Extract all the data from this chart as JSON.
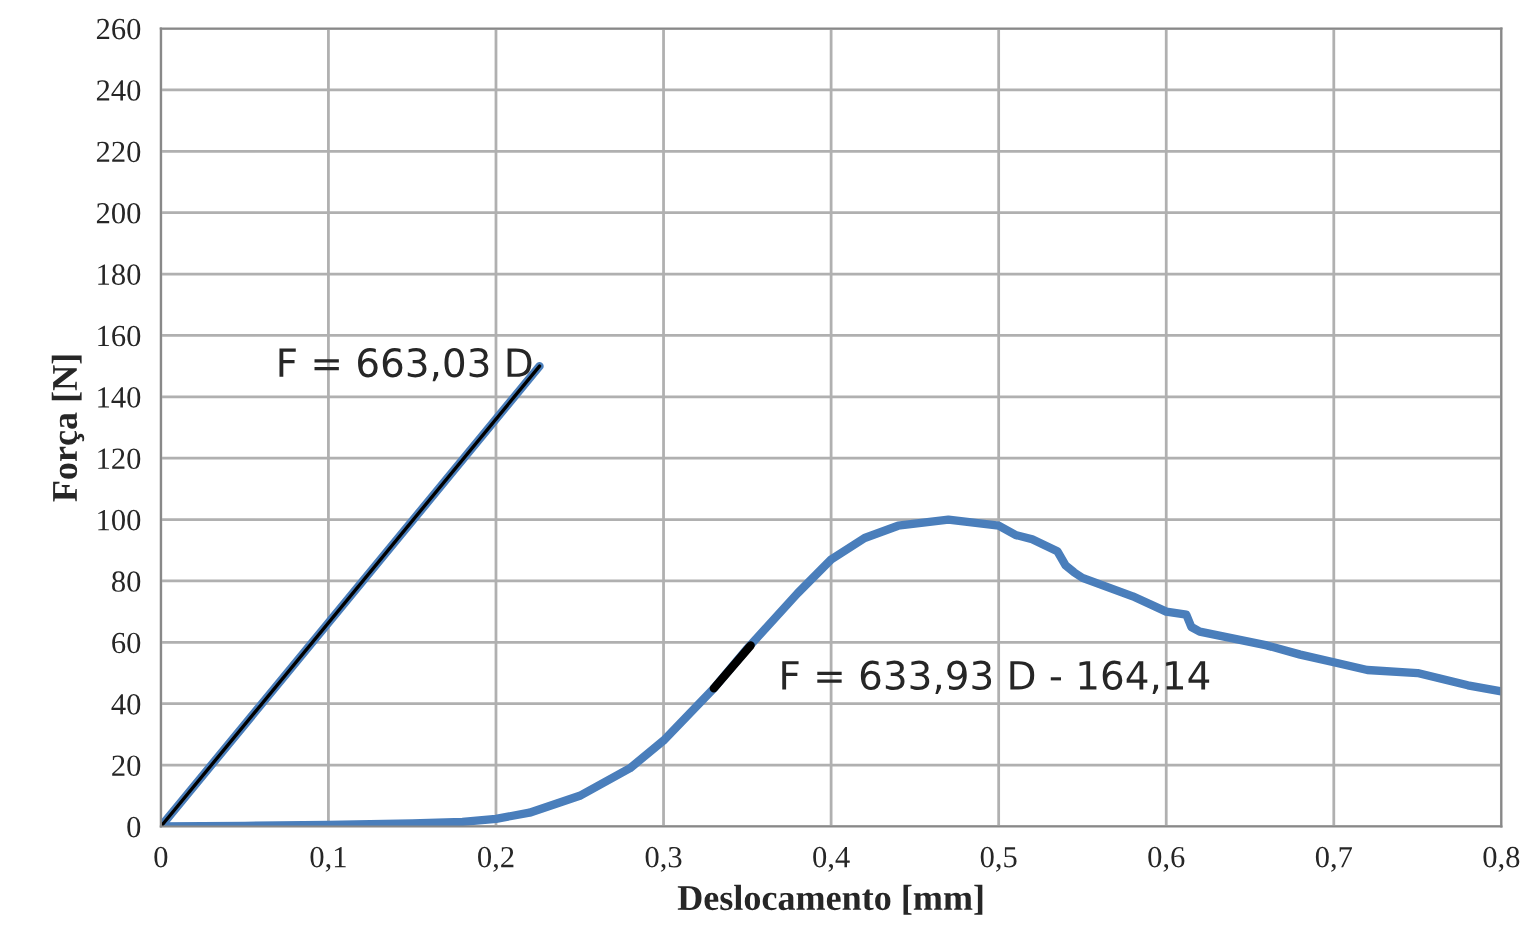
{
  "chart_data": {
    "type": "line",
    "xlabel": "Deslocamento [mm]",
    "ylabel": "Força [N]",
    "xlim": [
      0,
      0.8
    ],
    "ylim": [
      0,
      260
    ],
    "xticks": [
      {
        "value": 0,
        "label": "0"
      },
      {
        "value": 0.1,
        "label": "0,1"
      },
      {
        "value": 0.2,
        "label": "0,2"
      },
      {
        "value": 0.3,
        "label": "0,3"
      },
      {
        "value": 0.4,
        "label": "0,4"
      },
      {
        "value": 0.5,
        "label": "0,5"
      },
      {
        "value": 0.6,
        "label": "0,6"
      },
      {
        "value": 0.7,
        "label": "0,7"
      },
      {
        "value": 0.8,
        "label": "0,8"
      }
    ],
    "yticks": [
      0,
      20,
      40,
      60,
      80,
      100,
      120,
      140,
      160,
      180,
      200,
      220,
      240,
      260
    ],
    "grid": true,
    "legend": false,
    "marker": "none",
    "line_style": "solid",
    "series": [
      {
        "color": "#4a7ebb",
        "x": [
          0,
          0.05,
          0.1,
          0.15,
          0.18,
          0.2,
          0.22,
          0.25,
          0.28,
          0.3,
          0.33,
          0.35,
          0.38,
          0.4,
          0.42,
          0.44,
          0.47,
          0.5,
          0.51,
          0.52,
          0.535,
          0.54,
          0.545,
          0.55,
          0.58,
          0.6,
          0.612,
          0.615,
          0.62,
          0.66,
          0.68,
          0.7,
          0.72,
          0.75,
          0.78,
          0.8
        ],
        "values": [
          0,
          0.2,
          0.5,
          1,
          1.5,
          2.5,
          4.5,
          10,
          19,
          28,
          45,
          58,
          76,
          87,
          94,
          98,
          100,
          98,
          95,
          93.6,
          89.7,
          85,
          82.8,
          81,
          75,
          70,
          69,
          65,
          63.5,
          59,
          56,
          53.5,
          51,
          50,
          46,
          44
        ]
      },
      {
        "color": "#4a7ebb",
        "x": [
          0,
          0.226
        ],
        "values": [
          0,
          150
        ]
      },
      {
        "color": "#000000",
        "x": [
          0,
          0.226
        ],
        "values": [
          0,
          150
        ]
      },
      {
        "color": "#000000",
        "x": [
          0.33,
          0.352
        ],
        "values": [
          45,
          59
        ]
      }
    ],
    "annotations": [
      {
        "text": "F = 663,03 D",
        "x": 0.226,
        "y": 150
      },
      {
        "text": "F = 633,93 D - 164,14",
        "x": 0.352,
        "y": 59
      }
    ]
  }
}
